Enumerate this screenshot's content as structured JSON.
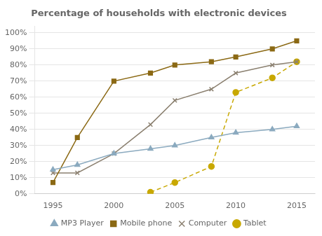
{
  "chart_data": {
    "type": "line",
    "title": "Percentage of households with electronic devices",
    "series": [
      {
        "name": "MP3 Player",
        "color": "#8BAABF",
        "marker": "triangle",
        "line_style": "solid",
        "x": [
          1995,
          1997,
          2000,
          2003,
          2005,
          2008,
          2010,
          2013,
          2015
        ],
        "values": [
          0.15,
          0.18,
          0.25,
          0.28,
          0.3,
          0.35,
          0.38,
          0.4,
          0.42
        ]
      },
      {
        "name": "Mobile phone",
        "color": "#8B6914",
        "marker": "square",
        "line_style": "solid",
        "x": [
          1995,
          1997,
          2000,
          2003,
          2005,
          2008,
          2010,
          2013,
          2015
        ],
        "values": [
          0.07,
          0.35,
          0.7,
          0.75,
          0.8,
          0.82,
          0.85,
          0.9,
          0.95
        ]
      },
      {
        "name": "Computer",
        "color": "#8B8070",
        "marker": "x",
        "line_style": "solid",
        "x": [
          1995,
          1997,
          2000,
          2003,
          2005,
          2008,
          2010,
          2013,
          2015
        ],
        "values": [
          0.13,
          0.13,
          0.25,
          0.43,
          0.58,
          0.65,
          0.75,
          0.8,
          0.82
        ]
      },
      {
        "name": "Tablet",
        "color": "#C8A800",
        "marker": "circle",
        "line_style": "dashed",
        "x": [
          2003,
          2005,
          2008,
          2010,
          2013,
          2015
        ],
        "values": [
          0.01,
          0.07,
          0.17,
          0.63,
          0.72,
          0.82
        ]
      }
    ],
    "xlim": [
      1993.5,
      2016.5
    ],
    "xticks": [
      1995,
      2000,
      2005,
      2010,
      2015
    ],
    "ylim": [
      0,
      1.04
    ],
    "yticks": [
      {
        "value": 0.0,
        "label": "0%"
      },
      {
        "value": 0.1,
        "label": "10%"
      },
      {
        "value": 0.2,
        "label": "20%"
      },
      {
        "value": 0.3,
        "label": "30%"
      },
      {
        "value": 0.4,
        "label": "40%"
      },
      {
        "value": 0.5,
        "label": "50%"
      },
      {
        "value": 0.6,
        "label": "60%"
      },
      {
        "value": 0.7,
        "label": "70%"
      },
      {
        "value": 0.8,
        "label": "80%"
      },
      {
        "value": 0.9,
        "label": "90%"
      },
      {
        "value": 1.0,
        "label": "100%"
      }
    ],
    "grid": "y",
    "legend": "bottom"
  }
}
